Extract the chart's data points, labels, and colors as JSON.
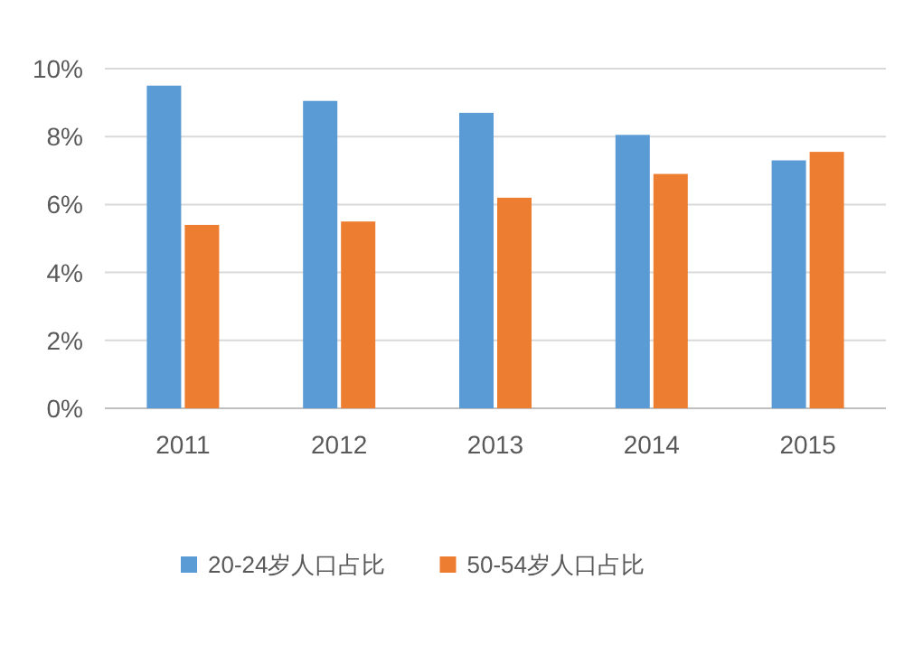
{
  "chart_data": {
    "type": "bar",
    "categories": [
      "2011",
      "2012",
      "2013",
      "2014",
      "2015"
    ],
    "series": [
      {
        "name": "20-24岁人口占比",
        "color": "#5b9bd5",
        "values": [
          9.5,
          9.05,
          8.7,
          8.05,
          7.3
        ]
      },
      {
        "name": "50-54岁人口占比",
        "color": "#ed7d31",
        "values": [
          5.4,
          5.5,
          6.2,
          6.9,
          7.55
        ]
      }
    ],
    "ylim": [
      0,
      10
    ],
    "yticks": [
      {
        "value": 0,
        "label": "0%"
      },
      {
        "value": 2,
        "label": "2%"
      },
      {
        "value": 4,
        "label": "4%"
      },
      {
        "value": 6,
        "label": "6%"
      },
      {
        "value": 8,
        "label": "8%"
      },
      {
        "value": 10,
        "label": "10%"
      }
    ],
    "grid": "y",
    "legend": "bottom"
  }
}
